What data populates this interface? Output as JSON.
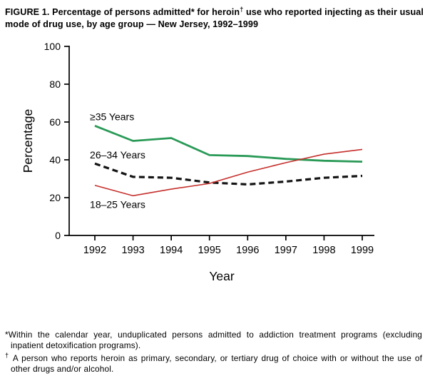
{
  "figure": {
    "title_before": "FIGURE 1. Percentage of persons admitted* for heroin",
    "title_dagger": "†",
    "title_after": " use who reported injecting as their usual mode of drug use, by age group — New Jersey, 1992–1999"
  },
  "chart_data": {
    "type": "line",
    "x": [
      1992,
      1993,
      1994,
      1995,
      1996,
      1997,
      1998,
      1999
    ],
    "series": [
      {
        "id": "35plus",
        "name": "≥35 Years",
        "values": [
          58,
          50,
          51.5,
          42.5,
          42,
          40.5,
          39.5,
          39
        ],
        "color": "#2a9a57",
        "dash": null,
        "width": 2.8,
        "label": {
          "x": 1991.87,
          "y": 61
        }
      },
      {
        "id": "26to34",
        "name": "26–34 Years",
        "values": [
          38,
          31,
          30.5,
          28,
          27,
          28.5,
          30.5,
          31.5
        ],
        "color": "#141414",
        "dash": "8 5",
        "width": 3.2,
        "label": {
          "x": 1991.87,
          "y": 40.7
        }
      },
      {
        "id": "18to25",
        "name": "18–25 Years",
        "values": [
          26.5,
          21,
          24.5,
          27.5,
          33.5,
          38.5,
          43,
          45.5
        ],
        "color": "#c5302c",
        "dash": null,
        "width": 1.6,
        "label": {
          "x": 1991.87,
          "y": 14.6
        }
      }
    ],
    "xlabel": "Year",
    "ylabel": "Percentage",
    "ylim": [
      0,
      100
    ],
    "yticks": [
      0,
      20,
      40,
      60,
      80,
      100
    ],
    "grid": false,
    "legend": "inline-labels"
  },
  "footnotes": [
    {
      "marker": "*",
      "text": "Within the calendar year, unduplicated persons admitted to addiction treatment programs (excluding inpatient detoxification programs)."
    },
    {
      "marker": "†",
      "text": " A person who reports heroin as primary, secondary, or tertiary drug of choice with or without the use of other drugs and/or alcohol."
    }
  ]
}
